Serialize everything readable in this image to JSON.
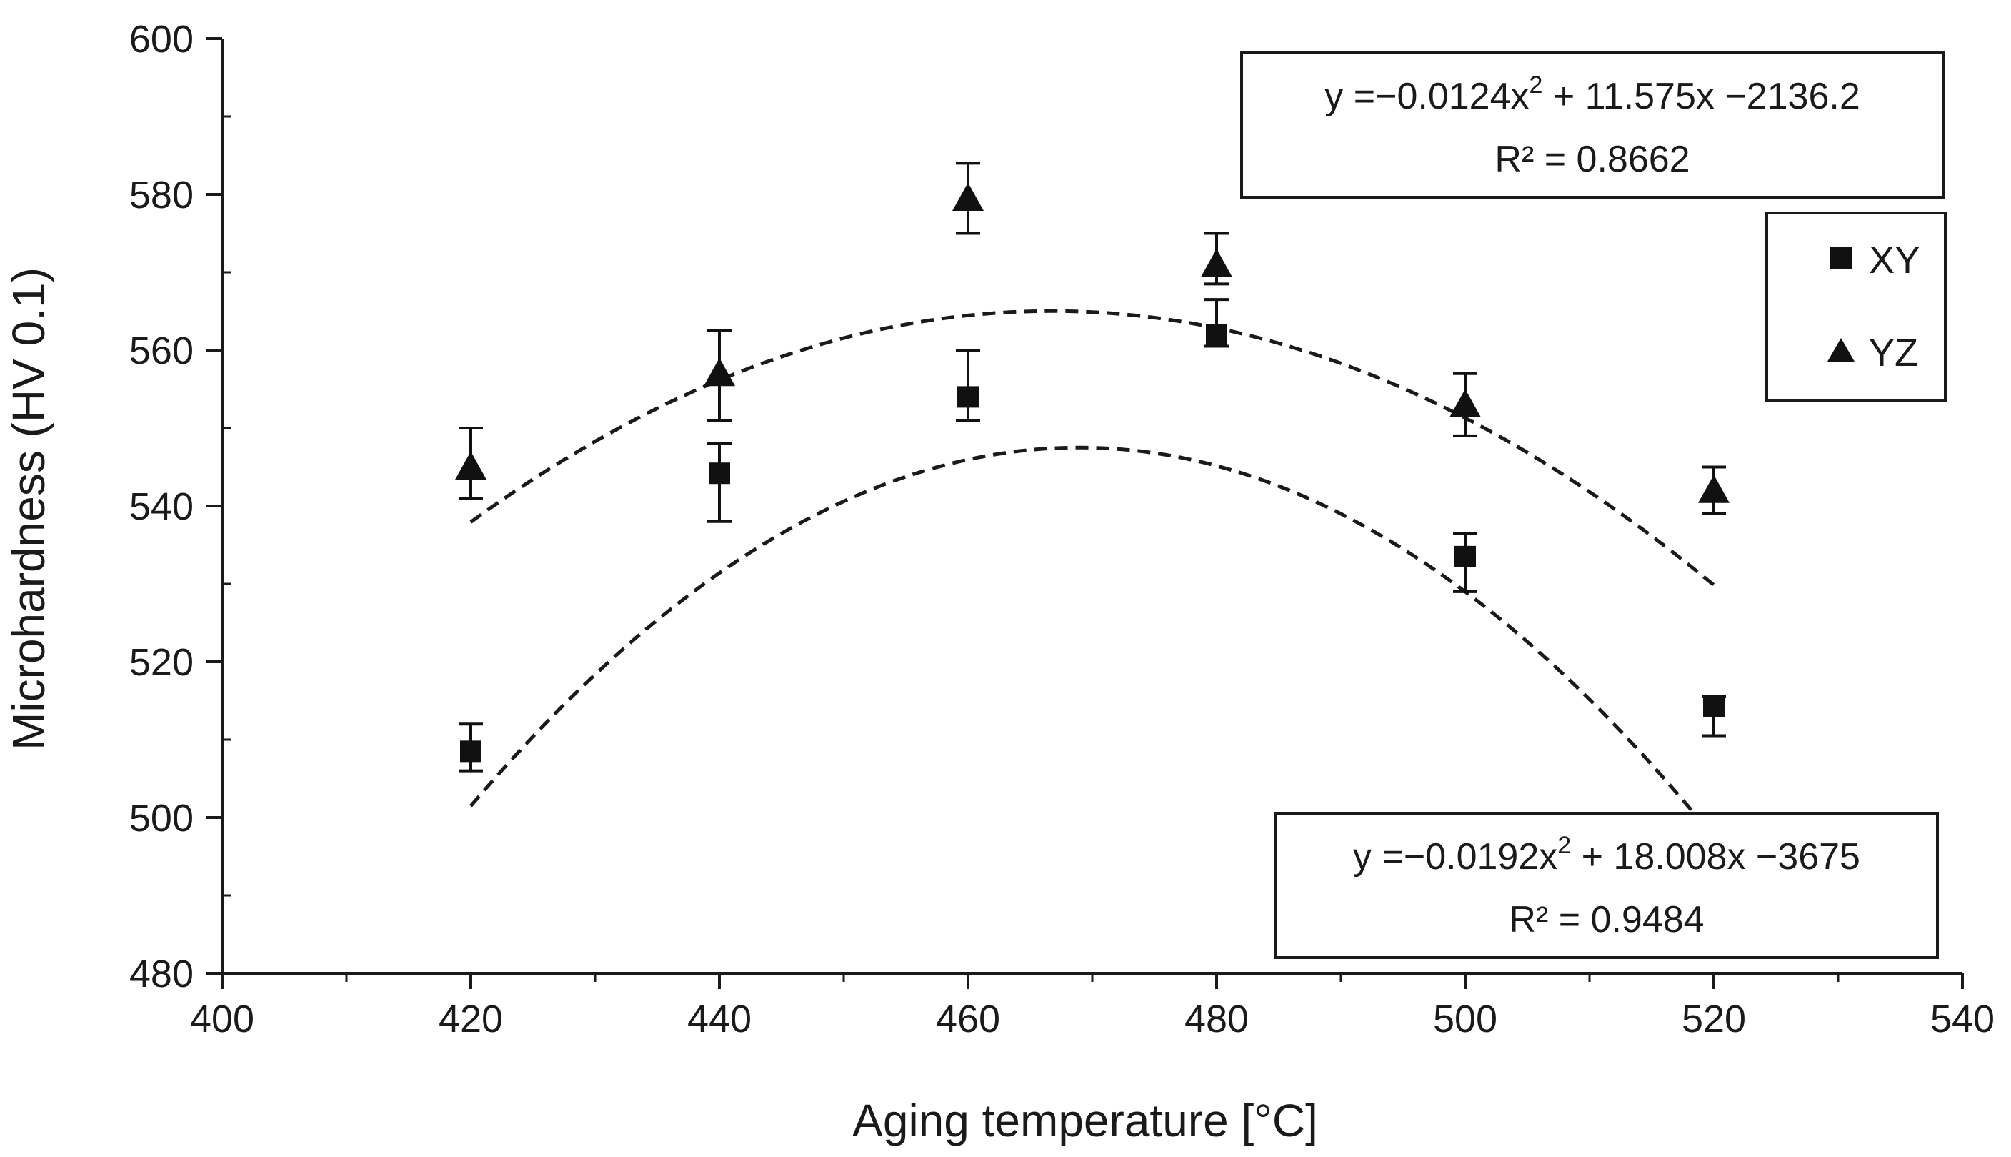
{
  "chart_data": {
    "type": "scatter",
    "title": "",
    "xlabel": "Aging temperature [°C]",
    "ylabel": "Microhardness (HV 0.1)",
    "xlim": [
      400,
      540
    ],
    "ylim": [
      480,
      600
    ],
    "x_major_ticks": [
      400,
      420,
      440,
      460,
      480,
      500,
      520,
      540
    ],
    "x_tick_labels": [
      "400",
      "420",
      "440",
      "460",
      "480",
      "500",
      "520",
      "540"
    ],
    "y_major_ticks": [
      480,
      500,
      520,
      540,
      560,
      580,
      600
    ],
    "y_tick_labels": [
      "480",
      "500",
      "520",
      "540",
      "560",
      "580",
      "600"
    ],
    "grid": false,
    "legend_position": "right",
    "series": [
      {
        "name": "XY",
        "marker": "square",
        "x": [
          420,
          440,
          460,
          480,
          500,
          520
        ],
        "y": [
          508.5,
          544.2,
          554,
          562,
          533.5,
          514.3
        ],
        "err_low": [
          506,
          538,
          551,
          560.5,
          529,
          510.5
        ],
        "err_high": [
          512,
          548,
          560,
          566.5,
          536.5,
          515.5
        ],
        "trendline": {
          "type": "polynomial",
          "coefficients": [
            -0.0192,
            18.008,
            -3675
          ],
          "equation_prefix": "y =−0.0192x",
          "equation_exp": "2",
          "equation_suffix": " + 18.008x −3675",
          "r2_label": "R² = 0.9484",
          "label_position": "bottom-right"
        }
      },
      {
        "name": "YZ",
        "marker": "triangle",
        "x": [
          420,
          440,
          460,
          480,
          500,
          520
        ],
        "y": [
          545,
          557,
          579.5,
          571,
          553,
          542
        ],
        "err_low": [
          541,
          551,
          575,
          568.5,
          549,
          539
        ],
        "err_high": [
          550,
          562.5,
          584,
          575,
          557,
          545
        ],
        "trendline": {
          "type": "polynomial",
          "coefficients": [
            -0.0124,
            11.575,
            -2136.2
          ],
          "equation_prefix": "y =−0.0124x",
          "equation_exp": "2",
          "equation_suffix": " + 11.575x −2136.2",
          "r2_label": "R² = 0.8662",
          "label_position": "top-right"
        }
      }
    ]
  }
}
